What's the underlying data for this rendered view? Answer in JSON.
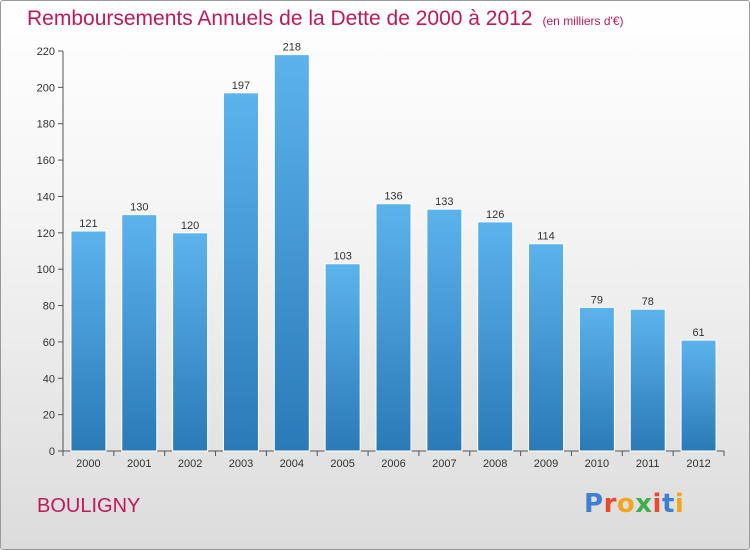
{
  "title": "Remboursements Annuels de la Dette de 2000 à 2012",
  "subtitle": "(en milliers d'€)",
  "location": "BOULIGNY",
  "logo": {
    "text": "Proxiti",
    "colors": [
      "#3c7fd3",
      "#e84a2f",
      "#f2a51d",
      "#3fae4b",
      "#e84a2f",
      "#3c7fd3",
      "#f2a51d"
    ]
  },
  "colors": {
    "bar_top": "#5cb3ec",
    "bar_bottom": "#2a7ab8",
    "title": "#c2185b"
  },
  "chart_data": {
    "type": "bar",
    "categories": [
      "2000",
      "2001",
      "2002",
      "2003",
      "2004",
      "2005",
      "2006",
      "2007",
      "2008",
      "2009",
      "2010",
      "2011",
      "2012"
    ],
    "values": [
      121,
      130,
      120,
      197,
      218,
      103,
      136,
      133,
      126,
      114,
      79,
      78,
      61
    ],
    "ylim": [
      0,
      220
    ],
    "yticks": [
      0,
      20,
      40,
      60,
      80,
      100,
      120,
      140,
      160,
      180,
      200,
      220
    ],
    "grid": false,
    "data_labels": true
  }
}
